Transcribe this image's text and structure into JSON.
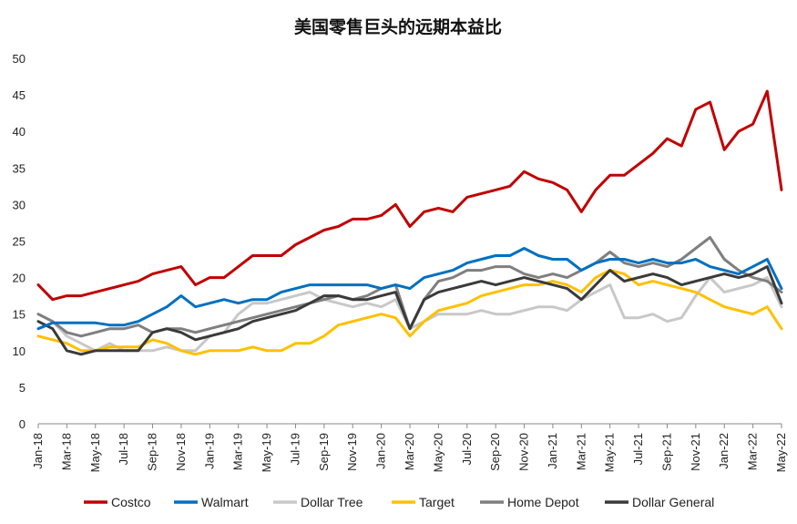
{
  "chart_data": {
    "type": "line",
    "title": "美国零售巨头的远期本益比",
    "xlabel": "",
    "ylabel": "",
    "ylim": [
      0,
      50
    ],
    "yticks": [
      0,
      5,
      10,
      15,
      20,
      25,
      30,
      35,
      40,
      45,
      50
    ],
    "x_tick_labels": [
      "Jan-18",
      "Mar-18",
      "May-18",
      "Jul-18",
      "Sep-18",
      "Nov-18",
      "Jan-19",
      "Mar-19",
      "May-19",
      "Jul-19",
      "Sep-19",
      "Nov-19",
      "Jan-20",
      "Mar-20",
      "May-20",
      "Jul-20",
      "Sep-20",
      "Nov-20",
      "Jan-21",
      "Mar-21",
      "May-21",
      "Jul-21",
      "Sep-21",
      "Nov-21",
      "Jan-22",
      "Mar-22",
      "May-22"
    ],
    "grid": false,
    "legend_position": "bottom",
    "x": [
      "2018-01",
      "2018-02",
      "2018-03",
      "2018-04",
      "2018-05",
      "2018-06",
      "2018-07",
      "2018-08",
      "2018-09",
      "2018-10",
      "2018-11",
      "2018-12",
      "2019-01",
      "2019-02",
      "2019-03",
      "2019-04",
      "2019-05",
      "2019-06",
      "2019-07",
      "2019-08",
      "2019-09",
      "2019-10",
      "2019-11",
      "2019-12",
      "2020-01",
      "2020-02",
      "2020-03",
      "2020-04",
      "2020-05",
      "2020-06",
      "2020-07",
      "2020-08",
      "2020-09",
      "2020-10",
      "2020-11",
      "2020-12",
      "2021-01",
      "2021-02",
      "2021-03",
      "2021-04",
      "2021-05",
      "2021-06",
      "2021-07",
      "2021-08",
      "2021-09",
      "2021-10",
      "2021-11",
      "2021-12",
      "2022-01",
      "2022-02",
      "2022-03",
      "2022-04",
      "2022-05"
    ],
    "series": [
      {
        "name": "Costco",
        "color": "#C00000",
        "values": [
          19.0,
          17.0,
          17.5,
          17.5,
          18.0,
          18.5,
          19.0,
          19.5,
          20.5,
          21.0,
          21.5,
          19.0,
          20.0,
          20.0,
          21.5,
          23.0,
          23.0,
          23.0,
          24.5,
          25.5,
          26.5,
          27.0,
          28.0,
          28.0,
          28.5,
          30.0,
          27.0,
          29.0,
          29.5,
          29.0,
          31.0,
          31.5,
          32.0,
          32.5,
          34.5,
          33.5,
          33.0,
          32.0,
          29.0,
          32.0,
          34.0,
          34.0,
          35.5,
          37.0,
          39.0,
          38.0,
          43.0,
          44.0,
          37.5,
          40.0,
          41.0,
          45.5,
          32.0
        ]
      },
      {
        "name": "Walmart",
        "color": "#0070C0",
        "values": [
          13.0,
          13.8,
          13.8,
          13.8,
          13.8,
          13.5,
          13.5,
          14.0,
          15.0,
          16.0,
          17.5,
          16.0,
          16.5,
          17.0,
          16.5,
          17.0,
          17.0,
          18.0,
          18.5,
          19.0,
          19.0,
          19.0,
          19.0,
          19.0,
          18.5,
          19.0,
          18.5,
          20.0,
          20.5,
          21.0,
          22.0,
          22.5,
          23.0,
          23.0,
          24.0,
          23.0,
          22.5,
          22.5,
          21.0,
          22.0,
          22.5,
          22.5,
          22.0,
          22.5,
          22.0,
          22.0,
          22.5,
          21.5,
          21.0,
          20.5,
          21.5,
          22.5,
          18.5
        ]
      },
      {
        "name": "Dollar Tree",
        "color": "#C8C8C8",
        "values": [
          15.0,
          14.0,
          12.0,
          11.0,
          10.0,
          11.0,
          10.0,
          10.0,
          10.0,
          10.5,
          10.0,
          10.0,
          12.0,
          12.5,
          15.0,
          16.5,
          16.5,
          17.0,
          17.5,
          18.0,
          17.0,
          16.5,
          16.0,
          16.5,
          16.0,
          17.0,
          13.0,
          14.0,
          15.0,
          15.0,
          15.0,
          15.5,
          15.0,
          15.0,
          15.5,
          16.0,
          16.0,
          15.5,
          17.0,
          18.0,
          19.0,
          14.5,
          14.5,
          15.0,
          14.0,
          14.5,
          17.5,
          20.0,
          18.0,
          18.5,
          19.0,
          20.0,
          16.0
        ]
      },
      {
        "name": "Target",
        "color": "#FFC000",
        "values": [
          12.0,
          11.5,
          11.0,
          10.0,
          10.0,
          10.5,
          10.5,
          10.5,
          11.5,
          11.0,
          10.0,
          9.5,
          10.0,
          10.0,
          10.0,
          10.5,
          10.0,
          10.0,
          11.0,
          11.0,
          12.0,
          13.5,
          14.0,
          14.5,
          15.0,
          14.5,
          12.0,
          14.0,
          15.5,
          16.0,
          16.5,
          17.5,
          18.0,
          18.5,
          19.0,
          19.0,
          19.5,
          19.0,
          18.0,
          20.0,
          21.0,
          20.5,
          19.0,
          19.5,
          19.0,
          18.5,
          18.0,
          17.0,
          16.0,
          15.5,
          15.0,
          16.0,
          13.0
        ]
      },
      {
        "name": "Home Depot",
        "color": "#7F7F7F",
        "values": [
          15.0,
          14.0,
          12.5,
          12.0,
          12.5,
          13.0,
          13.0,
          13.5,
          12.5,
          13.0,
          13.0,
          12.5,
          13.0,
          13.5,
          14.0,
          14.5,
          15.0,
          15.5,
          16.0,
          16.5,
          17.0,
          17.5,
          17.0,
          17.5,
          18.5,
          19.0,
          13.0,
          17.0,
          19.5,
          20.0,
          21.0,
          21.0,
          21.5,
          21.5,
          20.5,
          20.0,
          20.5,
          20.0,
          21.0,
          22.0,
          23.5,
          22.0,
          21.5,
          22.0,
          21.5,
          22.5,
          24.0,
          25.5,
          22.5,
          21.0,
          20.0,
          19.5,
          18.0
        ]
      },
      {
        "name": "Dollar General",
        "color": "#3A3A3A",
        "values": [
          14.0,
          13.0,
          10.0,
          9.5,
          10.0,
          10.0,
          10.0,
          10.0,
          12.5,
          13.0,
          12.5,
          11.5,
          12.0,
          12.5,
          13.0,
          14.0,
          14.5,
          15.0,
          15.5,
          16.5,
          17.5,
          17.5,
          17.0,
          17.0,
          17.5,
          18.0,
          13.0,
          17.0,
          18.0,
          18.5,
          19.0,
          19.5,
          19.0,
          19.5,
          20.0,
          19.5,
          19.0,
          18.5,
          17.0,
          19.0,
          21.0,
          19.5,
          20.0,
          20.5,
          20.0,
          19.0,
          19.5,
          20.0,
          20.5,
          20.0,
          20.5,
          21.5,
          16.5
        ]
      }
    ]
  }
}
